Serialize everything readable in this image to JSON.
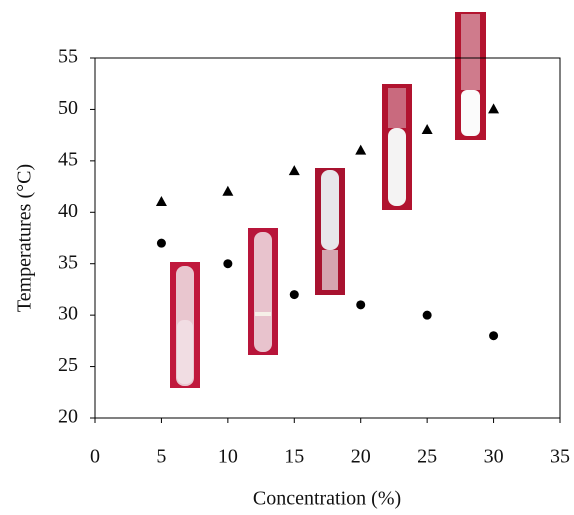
{
  "chart_data": {
    "type": "scatter",
    "x_label": "Concentration (%)",
    "y_label": "Temperatures (°C)",
    "x": [
      5,
      10,
      15,
      20,
      25,
      30
    ],
    "series": [
      {
        "marker": "triangle",
        "color": "#000000",
        "values": [
          41,
          42,
          44,
          46,
          48,
          50
        ]
      },
      {
        "marker": "circle",
        "color": "#000000",
        "values": [
          37,
          35,
          32,
          31,
          30,
          28
        ]
      }
    ],
    "xlim": [
      0,
      35
    ],
    "xticks": [
      0,
      5,
      10,
      15,
      20,
      25,
      30,
      35
    ],
    "ylim": [
      20,
      55
    ],
    "yticks": [
      20,
      25,
      30,
      35,
      40,
      45,
      50,
      55
    ],
    "grid": false
  }
}
